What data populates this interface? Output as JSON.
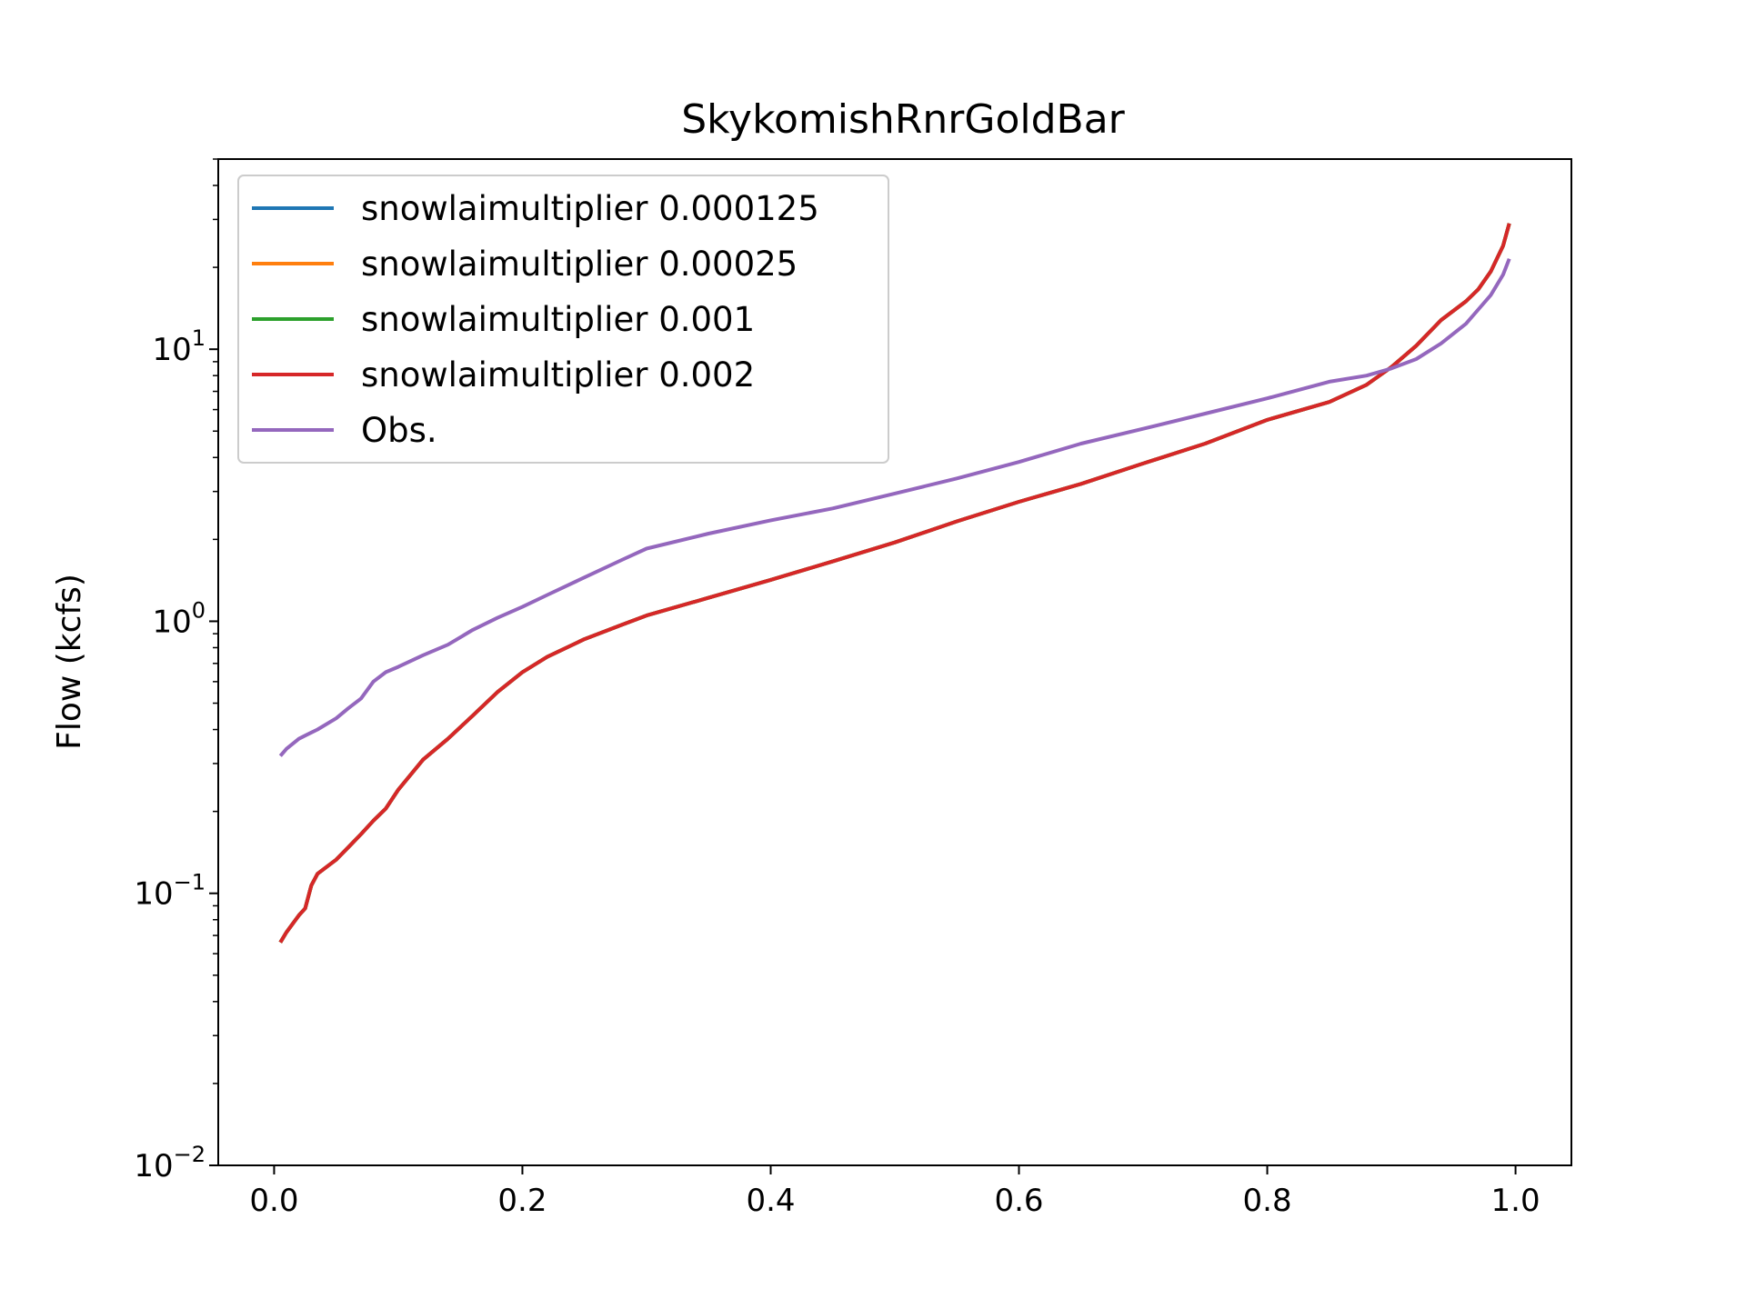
{
  "chart_data": {
    "type": "line",
    "title": "SkykomishRnrGoldBar",
    "xlabel": "",
    "ylabel": "Flow (kcfs)",
    "xlim": [
      -0.045,
      1.045
    ],
    "ylim": [
      0.01,
      50
    ],
    "yscale": "log",
    "xticks": [
      {
        "value": 0.0,
        "label": "0.0"
      },
      {
        "value": 0.2,
        "label": "0.2"
      },
      {
        "value": 0.4,
        "label": "0.4"
      },
      {
        "value": 0.6,
        "label": "0.6"
      },
      {
        "value": 0.8,
        "label": "0.8"
      },
      {
        "value": 1.0,
        "label": "1.0"
      }
    ],
    "yticks": [
      {
        "value": 0.01,
        "base": "10",
        "exp": "−2"
      },
      {
        "value": 0.1,
        "base": "10",
        "exp": "−1"
      },
      {
        "value": 1,
        "base": "10",
        "exp": "0"
      },
      {
        "value": 10,
        "base": "10",
        "exp": "1"
      }
    ],
    "grid": false,
    "legend_position": "top-left",
    "x": [
      0.005,
      0.01,
      0.02,
      0.025,
      0.03,
      0.035,
      0.05,
      0.06,
      0.07,
      0.08,
      0.09,
      0.1,
      0.12,
      0.14,
      0.16,
      0.18,
      0.2,
      0.22,
      0.25,
      0.28,
      0.3,
      0.35,
      0.4,
      0.45,
      0.5,
      0.55,
      0.6,
      0.65,
      0.7,
      0.75,
      0.8,
      0.85,
      0.88,
      0.9,
      0.92,
      0.94,
      0.96,
      0.97,
      0.98,
      0.99,
      0.995
    ],
    "series": [
      {
        "name": "snowlaimultiplier 0.000125",
        "color": "#1f77b4",
        "values": [
          0.066,
          0.072,
          0.083,
          0.088,
          0.107,
          0.118,
          0.133,
          0.148,
          0.165,
          0.185,
          0.205,
          0.24,
          0.31,
          0.37,
          0.45,
          0.55,
          0.65,
          0.74,
          0.86,
          0.97,
          1.05,
          1.22,
          1.42,
          1.66,
          1.95,
          2.33,
          2.75,
          3.2,
          3.8,
          4.5,
          5.5,
          6.4,
          7.4,
          8.6,
          10.3,
          12.8,
          15.0,
          16.6,
          19.3,
          24.0,
          29.0
        ]
      },
      {
        "name": "snowlaimultiplier 0.00025",
        "color": "#ff7f0e",
        "values": [
          0.066,
          0.072,
          0.083,
          0.088,
          0.107,
          0.118,
          0.133,
          0.148,
          0.165,
          0.185,
          0.205,
          0.24,
          0.31,
          0.37,
          0.45,
          0.55,
          0.65,
          0.74,
          0.86,
          0.97,
          1.05,
          1.22,
          1.42,
          1.66,
          1.95,
          2.33,
          2.75,
          3.2,
          3.8,
          4.5,
          5.5,
          6.4,
          7.4,
          8.6,
          10.3,
          12.8,
          15.0,
          16.6,
          19.3,
          24.0,
          29.0
        ]
      },
      {
        "name": "snowlaimultiplier 0.001",
        "color": "#2ca02c",
        "values": [
          0.066,
          0.072,
          0.083,
          0.088,
          0.107,
          0.118,
          0.133,
          0.148,
          0.165,
          0.185,
          0.205,
          0.24,
          0.31,
          0.37,
          0.45,
          0.55,
          0.65,
          0.74,
          0.86,
          0.97,
          1.05,
          1.22,
          1.42,
          1.66,
          1.95,
          2.33,
          2.75,
          3.2,
          3.8,
          4.5,
          5.5,
          6.4,
          7.4,
          8.6,
          10.3,
          12.8,
          15.0,
          16.6,
          19.3,
          24.0,
          29.0
        ]
      },
      {
        "name": "snowlaimultiplier 0.002",
        "color": "#d62728",
        "values": [
          0.066,
          0.072,
          0.083,
          0.088,
          0.107,
          0.118,
          0.133,
          0.148,
          0.165,
          0.185,
          0.205,
          0.24,
          0.31,
          0.37,
          0.45,
          0.55,
          0.65,
          0.74,
          0.86,
          0.97,
          1.05,
          1.22,
          1.42,
          1.66,
          1.95,
          2.33,
          2.75,
          3.2,
          3.8,
          4.5,
          5.5,
          6.4,
          7.4,
          8.6,
          10.3,
          12.8,
          15.0,
          16.6,
          19.3,
          24.0,
          29.0
        ]
      },
      {
        "name": "Obs.",
        "color": "#9467bd",
        "values": [
          0.32,
          0.34,
          0.37,
          0.38,
          0.39,
          0.4,
          0.44,
          0.48,
          0.52,
          0.6,
          0.65,
          0.68,
          0.75,
          0.82,
          0.93,
          1.03,
          1.13,
          1.25,
          1.45,
          1.68,
          1.85,
          2.1,
          2.35,
          2.6,
          2.95,
          3.35,
          3.85,
          4.5,
          5.1,
          5.8,
          6.6,
          7.6,
          8.0,
          8.5,
          9.2,
          10.5,
          12.4,
          14.0,
          15.8,
          18.8,
          21.5
        ]
      }
    ]
  }
}
